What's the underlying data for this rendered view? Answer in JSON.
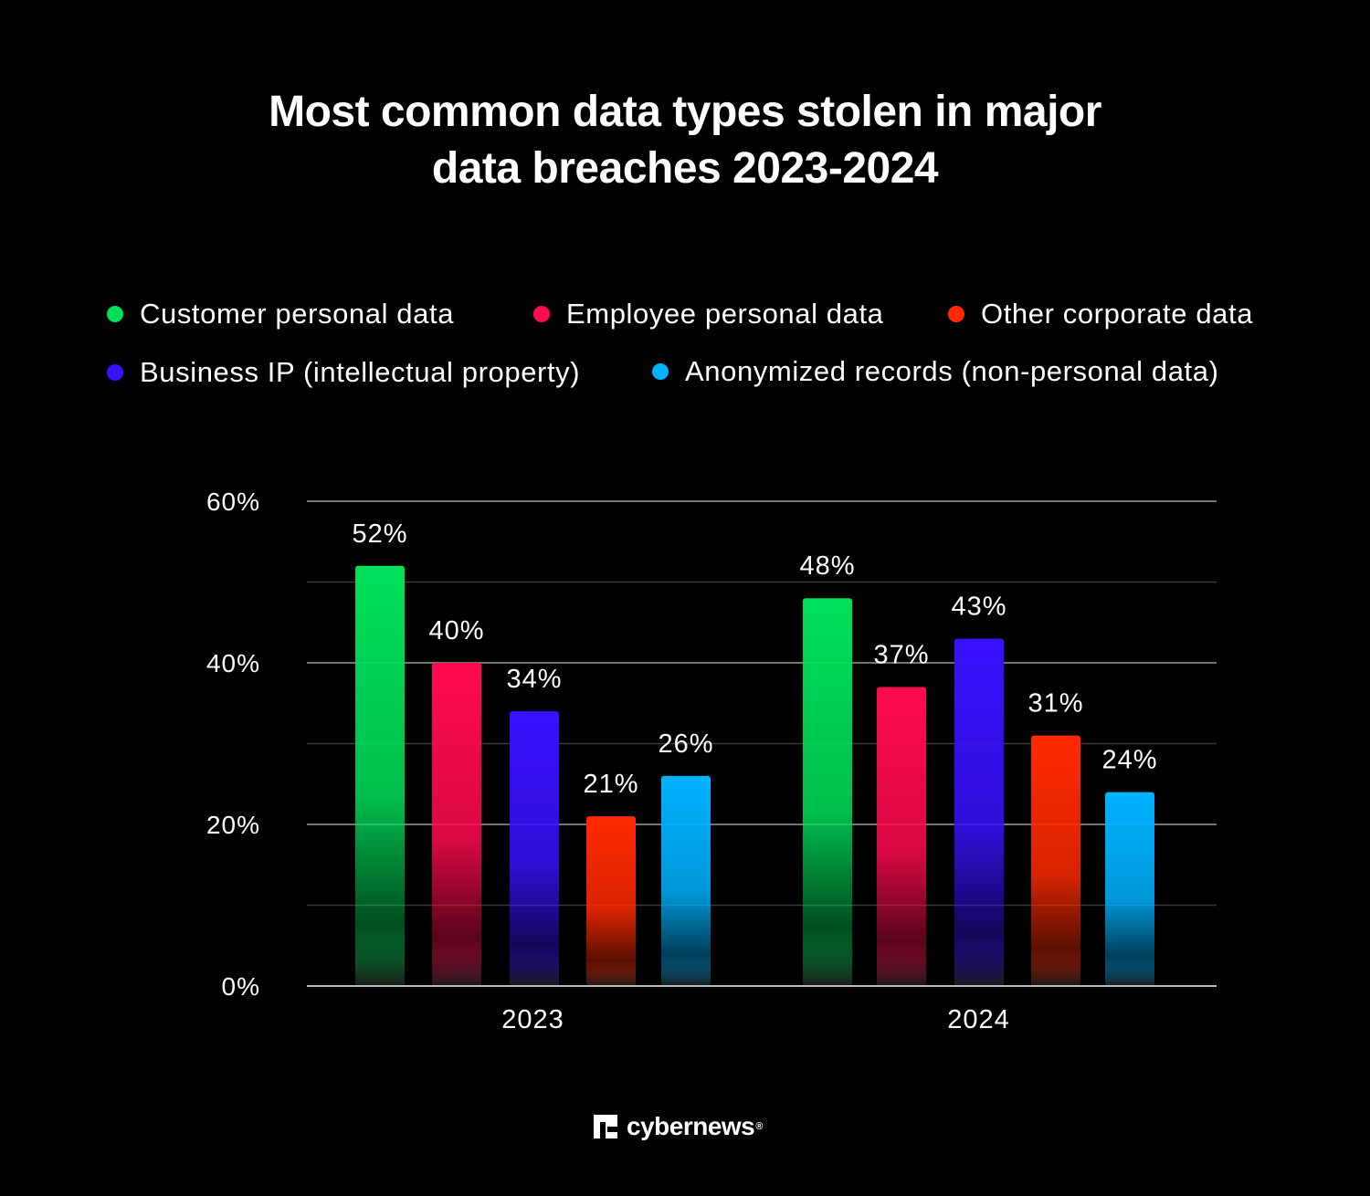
{
  "chart_data": {
    "type": "bar",
    "title_lines": [
      "Most common data types stolen in major",
      "data breaches 2023-2024"
    ],
    "categories": [
      "2023",
      "2024"
    ],
    "series": [
      {
        "name": "Customer personal data",
        "values": [
          52,
          48
        ],
        "labels": [
          "52%",
          "48%"
        ],
        "color": "#00e05a"
      },
      {
        "name": "Employee personal data",
        "values": [
          40,
          37
        ],
        "labels": [
          "40%",
          "37%"
        ],
        "color": "#ff0a4e"
      },
      {
        "name": "Business IP (intellectual property)",
        "values": [
          34,
          43
        ],
        "labels": [
          "34%",
          "43%"
        ],
        "color": "#3a10ff"
      },
      {
        "name": "Other corporate data",
        "values": [
          21,
          31
        ],
        "labels": [
          "21%",
          "31%"
        ],
        "color": "#ff2a00"
      },
      {
        "name": "Anonymized records (non-personal data)",
        "values": [
          26,
          24
        ],
        "labels": [
          "26%",
          "24%"
        ],
        "color": "#00b2ff"
      }
    ],
    "yticks": [
      {
        "value": 0,
        "label": "0%"
      },
      {
        "value": 20,
        "label": "20%"
      },
      {
        "value": 40,
        "label": "40%"
      },
      {
        "value": 60,
        "label": "60%"
      }
    ],
    "ylim": [
      0,
      60
    ],
    "grid": true,
    "legend": "top",
    "bar_order": [
      0,
      1,
      2,
      3,
      4
    ],
    "background": "#000000"
  },
  "branding": {
    "logo_text": "cybernews",
    "logo_mark": "®"
  }
}
